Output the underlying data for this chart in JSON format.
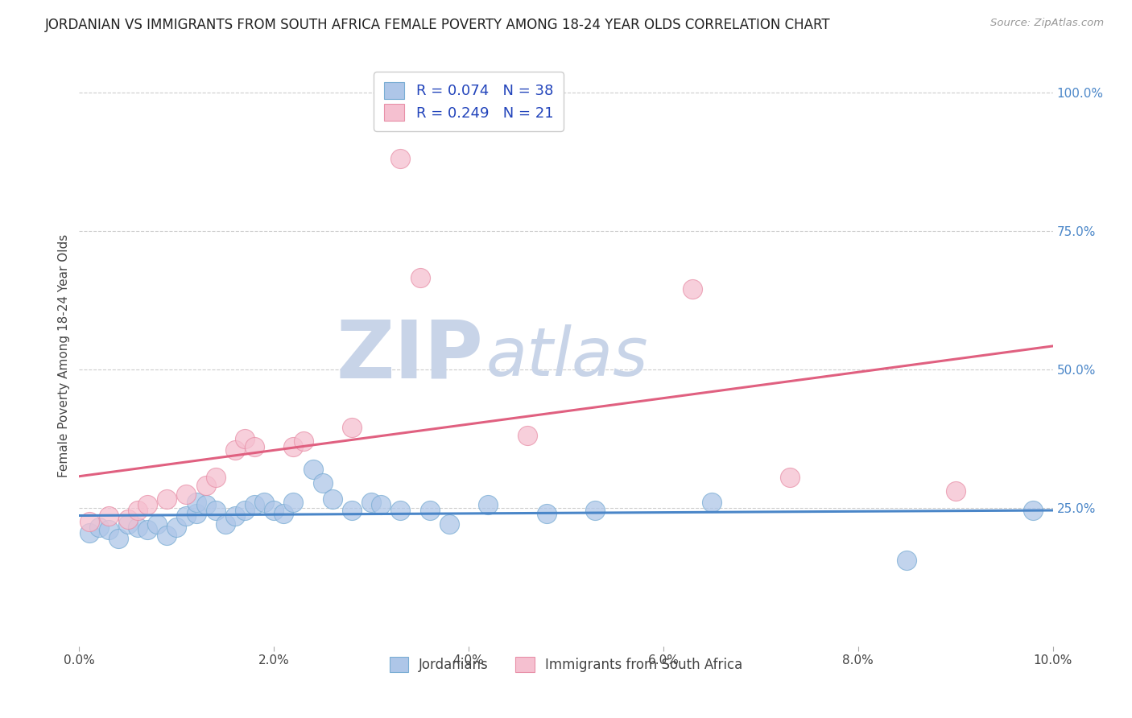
{
  "title": "JORDANIAN VS IMMIGRANTS FROM SOUTH AFRICA FEMALE POVERTY AMONG 18-24 YEAR OLDS CORRELATION CHART",
  "source": "Source: ZipAtlas.com",
  "ylabel": "Female Poverty Among 18-24 Year Olds",
  "xlim": [
    0.0,
    0.1
  ],
  "ylim": [
    0.0,
    1.05
  ],
  "xticks": [
    0.0,
    0.02,
    0.04,
    0.06,
    0.08,
    0.1
  ],
  "xticklabels": [
    "0.0%",
    "2.0%",
    "4.0%",
    "6.0%",
    "8.0%",
    "10.0%"
  ],
  "yticks_right": [
    0.25,
    0.5,
    0.75,
    1.0
  ],
  "yticklabels_right": [
    "25.0%",
    "50.0%",
    "75.0%",
    "100.0%"
  ],
  "grid_color": "#cccccc",
  "background_color": "#ffffff",
  "watermark_ZIP": "ZIP",
  "watermark_atlas": "atlas",
  "watermark_ZIP_color": "#c8d4e8",
  "watermark_atlas_color": "#c8d4e8",
  "series1_label": "Jordanians",
  "series1_R": 0.074,
  "series1_N": 38,
  "series1_color": "#aec6e8",
  "series1_edge_color": "#7aadd4",
  "series1_line_color": "#4a86c8",
  "series2_label": "Immigrants from South Africa",
  "series2_R": 0.249,
  "series2_N": 21,
  "series2_color": "#f5c0d0",
  "series2_edge_color": "#e890a8",
  "series2_line_color": "#e06080",
  "legend_R_color": "#2244bb",
  "jordanians_x": [
    0.001,
    0.002,
    0.003,
    0.004,
    0.005,
    0.006,
    0.007,
    0.008,
    0.009,
    0.01,
    0.011,
    0.012,
    0.012,
    0.013,
    0.014,
    0.015,
    0.016,
    0.017,
    0.018,
    0.019,
    0.02,
    0.021,
    0.022,
    0.024,
    0.025,
    0.026,
    0.028,
    0.03,
    0.031,
    0.033,
    0.036,
    0.038,
    0.042,
    0.048,
    0.053,
    0.065,
    0.085,
    0.098
  ],
  "jordanians_y": [
    0.205,
    0.215,
    0.21,
    0.195,
    0.22,
    0.215,
    0.21,
    0.22,
    0.2,
    0.215,
    0.235,
    0.24,
    0.26,
    0.255,
    0.245,
    0.22,
    0.235,
    0.245,
    0.255,
    0.26,
    0.245,
    0.24,
    0.26,
    0.32,
    0.295,
    0.265,
    0.245,
    0.26,
    0.255,
    0.245,
    0.245,
    0.22,
    0.255,
    0.24,
    0.245,
    0.26,
    0.155,
    0.245
  ],
  "sa_x": [
    0.001,
    0.003,
    0.005,
    0.006,
    0.007,
    0.009,
    0.011,
    0.013,
    0.014,
    0.016,
    0.017,
    0.018,
    0.022,
    0.023,
    0.028,
    0.033,
    0.035,
    0.046,
    0.063,
    0.073,
    0.09
  ],
  "sa_y": [
    0.225,
    0.235,
    0.23,
    0.245,
    0.255,
    0.265,
    0.275,
    0.29,
    0.305,
    0.355,
    0.375,
    0.36,
    0.36,
    0.37,
    0.395,
    0.88,
    0.665,
    0.38,
    0.645,
    0.305,
    0.28
  ]
}
